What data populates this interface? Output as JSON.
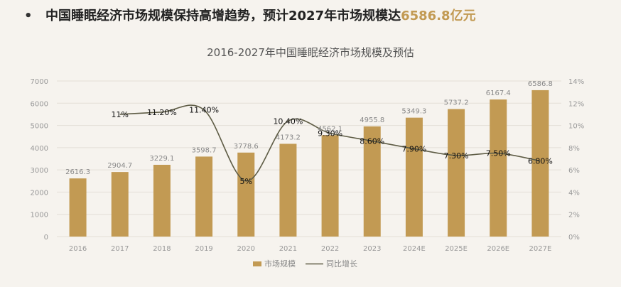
{
  "header": {
    "bullet": "•",
    "headline_main": "中国睡眠经济市场规模保持高增趋势，预计2027年市场规模达",
    "headline_highlight": "6586.8亿元"
  },
  "colors": {
    "bar": "#c29a53",
    "line": "#5f5d46",
    "background": "#f6f3ee"
  },
  "chart_data": {
    "type": "bar",
    "title": "2016-2027年中国睡眠经济市场规模及预估",
    "categories": [
      "2016",
      "2017",
      "2018",
      "2019",
      "2020",
      "2021",
      "2022",
      "2023",
      "2024E",
      "2025E",
      "2026E",
      "2027E"
    ],
    "series": [
      {
        "name": "市场规模",
        "type": "bar",
        "axis": "left",
        "values": [
          2616.3,
          2904.7,
          3229.1,
          3598.7,
          3778.6,
          4173.2,
          4562.1,
          4955.8,
          5349.3,
          5737.2,
          6167.4,
          6586.8
        ],
        "labels": [
          "2616.3",
          "2904.7",
          "3229.1",
          "3598.7",
          "3778.6",
          "4173.2",
          "4562.1",
          "4955.8",
          "5349.3",
          "5737.2",
          "6167.4",
          "6586.8"
        ]
      },
      {
        "name": "同比增长",
        "type": "line",
        "axis": "right",
        "values": [
          null,
          11,
          11.2,
          11.4,
          5,
          10.4,
          9.3,
          8.6,
          7.9,
          7.3,
          7.5,
          6.8
        ],
        "labels": [
          "",
          "11%",
          "11.20%",
          "11.40%",
          "5%",
          "10.40%",
          "9.30%",
          "8.60%",
          "7.90%",
          "7.30%",
          "7.50%",
          "6.80%"
        ]
      }
    ],
    "y_left": {
      "range": [
        0,
        7000
      ],
      "ticks": [
        "0",
        "1000",
        "2000",
        "3000",
        "4000",
        "5000",
        "6000",
        "7000"
      ]
    },
    "y_right": {
      "range": [
        0,
        14
      ],
      "ticks": [
        "0%",
        "2%",
        "4%",
        "6%",
        "8%",
        "10%",
        "12%",
        "14%"
      ]
    },
    "grid": true,
    "legend_position": "bottom"
  }
}
